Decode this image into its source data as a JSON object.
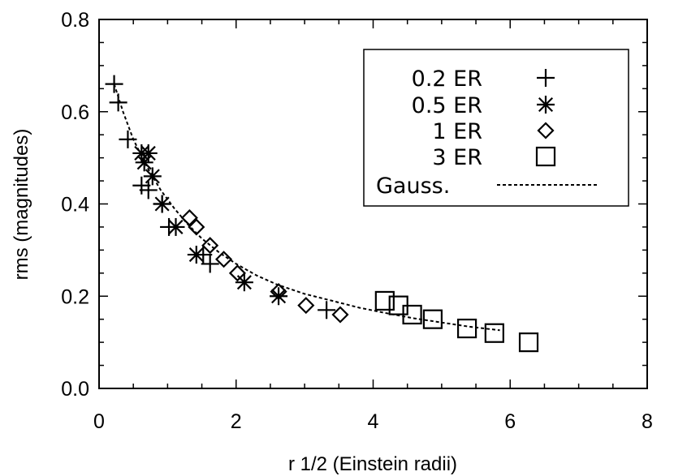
{
  "chart_data": {
    "type": "scatter",
    "xlabel": "r 1/2 (Einstein radii)",
    "ylabel": "rms (magnitudes)",
    "xlim": [
      0,
      8
    ],
    "ylim": [
      0,
      0.8
    ],
    "x_ticks": [
      "0",
      "2",
      "4",
      "6",
      "8"
    ],
    "y_ticks": [
      "0.0",
      "0.2",
      "0.4",
      "0.6",
      "0.8"
    ],
    "legend_position": "top-right",
    "grid": false,
    "series": [
      {
        "name": "0.2 ER",
        "marker": "plus",
        "points": [
          [
            0.22,
            0.66
          ],
          [
            0.28,
            0.62
          ],
          [
            0.42,
            0.54
          ],
          [
            0.62,
            0.44
          ],
          [
            0.72,
            0.43
          ],
          [
            0.92,
            0.4
          ],
          [
            1.02,
            0.35
          ],
          [
            1.52,
            0.29
          ],
          [
            1.62,
            0.27
          ],
          [
            3.32,
            0.17
          ]
        ]
      },
      {
        "name": "0.5 ER",
        "marker": "asterisk",
        "points": [
          [
            0.62,
            0.51
          ],
          [
            0.66,
            0.49
          ],
          [
            0.72,
            0.51
          ],
          [
            0.78,
            0.46
          ],
          [
            0.92,
            0.4
          ],
          [
            1.12,
            0.35
          ],
          [
            1.42,
            0.29
          ],
          [
            2.12,
            0.23
          ],
          [
            2.62,
            0.2
          ]
        ]
      },
      {
        "name": "1 ER",
        "marker": "diamond",
        "points": [
          [
            1.32,
            0.37
          ],
          [
            1.42,
            0.35
          ],
          [
            1.62,
            0.31
          ],
          [
            1.82,
            0.28
          ],
          [
            2.02,
            0.25
          ],
          [
            2.62,
            0.21
          ],
          [
            3.02,
            0.18
          ],
          [
            3.52,
            0.16
          ]
        ]
      },
      {
        "name": "3 ER",
        "marker": "square",
        "points": [
          [
            4.17,
            0.19
          ],
          [
            4.37,
            0.18
          ],
          [
            4.57,
            0.16
          ],
          [
            4.87,
            0.15
          ],
          [
            5.37,
            0.13
          ],
          [
            5.77,
            0.12
          ],
          [
            6.27,
            0.1
          ]
        ]
      },
      {
        "name": "Gauss.",
        "marker": "dashed-line",
        "points": [
          [
            0.22,
            0.66
          ],
          [
            0.35,
            0.6
          ],
          [
            0.5,
            0.54
          ],
          [
            0.7,
            0.48
          ],
          [
            0.9,
            0.43
          ],
          [
            1.1,
            0.39
          ],
          [
            1.3,
            0.355
          ],
          [
            1.5,
            0.325
          ],
          [
            1.75,
            0.295
          ],
          [
            2.0,
            0.27
          ],
          [
            2.3,
            0.245
          ],
          [
            2.6,
            0.225
          ],
          [
            3.0,
            0.205
          ],
          [
            3.4,
            0.19
          ],
          [
            3.8,
            0.175
          ],
          [
            4.2,
            0.163
          ],
          [
            4.6,
            0.152
          ],
          [
            5.0,
            0.143
          ],
          [
            5.4,
            0.134
          ],
          [
            5.85,
            0.126
          ]
        ]
      }
    ]
  }
}
